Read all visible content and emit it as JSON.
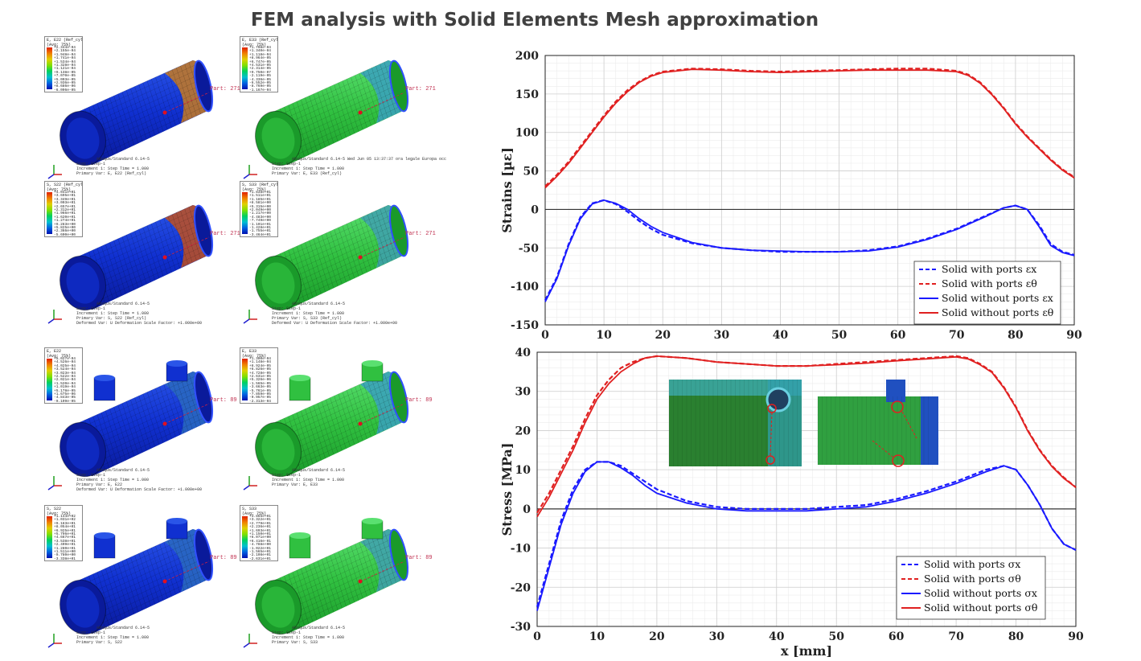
{
  "title": "FEM analysis with Solid Elements Mesh approximation",
  "colors": {
    "red": "#e02020",
    "blue": "#1a1aff",
    "grid": "#d8d8d8"
  },
  "fem_panels": [
    {
      "legend_title": "E, E22 (Ref_cyl)",
      "legend_avg": "(Avg: 75%)",
      "ticks": [
        "+2.344e-04",
        "+2.155e-04",
        "+1.948e-04",
        "+1.741e-04",
        "+1.534e-04",
        "+1.328e-04",
        "+1.121e-04",
        "+9.138e-05",
        "+7.070e-05",
        "+5.003e-05",
        "+2.936e-05",
        "+8.686e-06",
        "-6.096e-05"
      ],
      "part_label": "Part: 271",
      "footer": [
        "Step: Step-1",
        "Increment 1: Step Time = 1.000",
        "Primary Var: E, E22 (Ref_cyl)"
      ],
      "odb": "Abaqus/Standard 6.14-5",
      "body": "blue",
      "band": "#c87a20",
      "ports": false
    },
    {
      "legend_title": "E, E33 (Ref_cyl)",
      "legend_avg": "(Avg: 75%)",
      "ticks": [
        "+1.708e-04",
        "+1.340e-04",
        "+1.118e-04",
        "+8.964e-05",
        "+6.747e-05",
        "+4.531e-05",
        "+2.314e-05",
        "+9.750e-07",
        "-2.119e-05",
        "-4.336e-05",
        "-6.552e-05",
        "-8.769e-05",
        "-1.167e-04"
      ],
      "part_label": "Part: 271",
      "footer": [
        "Step: Step-1",
        "Increment 1: Step Time = 1.000",
        "Primary Var: E, E33 (Ref_cyl)"
      ],
      "odb": "Abaqus/Standard 6.14-5  Wed Jun 05 13:37:37 ora legale Europa occ",
      "body": "green",
      "band": "#3aa0c0",
      "ports": false
    },
    {
      "legend_title": "S, S22 (Ref_cyl)",
      "legend_avg": "(Avg: 75%)",
      "ticks": [
        "+4.041e+01",
        "+3.695e+01",
        "+3.349e+01",
        "+3.003e+01",
        "+2.657e+01",
        "+2.312e+01",
        "+1.966e+01",
        "+1.620e+01",
        "+1.274e+01",
        "+9.283e+00",
        "+5.825e+00",
        "+2.366e+00",
        "-5.600e+00"
      ],
      "part_label": "Part: 271",
      "footer": [
        "Step: Step-1",
        "Increment 1: Step Time = 1.000",
        "Primary Var: S, S22 (Ref_cyl)",
        "Deformed Var: U  Deformation Scale Factor: +1.000e+00"
      ],
      "odb": "Abaqus/Standard 6.14-5",
      "body": "blue",
      "band": "#c05020",
      "ports": false
    },
    {
      "legend_title": "S, S33 (Ref_cyl)",
      "legend_avg": "(Avg: 75%)",
      "ticks": [
        "+1.838e+01",
        "+1.511e+01",
        "+1.185e+01",
        "+8.581e+00",
        "+5.315e+00",
        "+2.049e+00",
        "-1.217e+00",
        "-4.483e+00",
        "-7.749e+00",
        "-1.101e+01",
        "-1.428e+01",
        "-1.755e+01",
        "-3.464e+01"
      ],
      "part_label": "Part: 271",
      "footer": [
        "Step: Step-1",
        "Increment 1: Step Time = 1.000",
        "Primary Var: S, S33 (Ref_cyl)",
        "Deformed Var: U  Deformation Scale Factor: +1.000e+00"
      ],
      "odb": "Abaqus/Standard 6.14-5",
      "body": "green",
      "band": "#40a0b0",
      "ports": false
    },
    {
      "legend_title": "E, E22",
      "legend_avg": "(Avg: 75%)",
      "ticks": [
        "+5.027e-04",
        "+4.526e-04",
        "+4.025e-04",
        "+3.524e-04",
        "+3.023e-04",
        "+2.522e-04",
        "+2.021e-04",
        "+1.520e-04",
        "+1.019e-04",
        "+5.178e-05",
        "+1.675e-06",
        "-4.843e-05",
        "-9.109e-05"
      ],
      "part_label": "Part: 89",
      "footer": [
        "Step: Step-1",
        "Increment 1: Step Time = 1.000",
        "Primary Var: E, E22",
        "Deformed Var: U  Deformation Scale Factor: +1.000e+00"
      ],
      "odb": "Abaqus/Standard 6.14-5",
      "body": "blue",
      "band": "#2a6ac0",
      "ports": true
    },
    {
      "legend_title": "E, E33",
      "legend_avg": "(Avg: 75%)",
      "ticks": [
        "+1.300e-04",
        "+1.148e-04",
        "+8.924e-05",
        "+6.826e-05",
        "+4.728e-05",
        "+2.631e-05",
        "+5.326e-06",
        "-1.565e-05",
        "-3.663e-05",
        "-5.761e-05",
        "-7.859e-05",
        "-9.957e-05",
        "-2.313e-04"
      ],
      "part_label": "Part: 89",
      "footer": [
        "Step: Step-1",
        "Increment 1: Step Time = 1.000",
        "Primary Var: E, E33"
      ],
      "odb": "Abaqus/Standard 6.14-5",
      "body": "green",
      "band": "#3aa0c0",
      "ports": true
    },
    {
      "legend_title": "S, S22",
      "legend_avg": "(Avg: 75%)",
      "ticks": [
        "+1.144e+02",
        "+1.031e+02",
        "+9.183e+01",
        "+8.054e+01",
        "+6.925e+01",
        "+5.796e+01",
        "+4.667e+01",
        "+3.538e+01",
        "+2.409e+01",
        "+1.280e+01",
        "+1.511e+00",
        "-9.780e+00",
        "-3.338e+01"
      ],
      "part_label": "Part: 89",
      "footer": [
        "Step: Step-1",
        "Increment 1: Step Time = 1.000",
        "Primary Var: S, S22"
      ],
      "odb": "Abaqus/Standard 6.14-5",
      "body": "blue",
      "band": "#2a6ac0",
      "ports": true
    },
    {
      "legend_title": "S, S33",
      "legend_avg": "(Avg: 75%)",
      "ticks": [
        "+3.865e+01",
        "+3.322e+01",
        "+2.779e+01",
        "+2.236e+01",
        "+1.693e+01",
        "+1.150e+01",
        "+6.071e+00",
        "+6.416e-01",
        "-4.788e+00",
        "-1.022e+01",
        "-1.565e+01",
        "-2.108e+01",
        "-2.631e+01"
      ],
      "part_label": "Part: 89",
      "footer": [
        "Step: Step-1",
        "Increment 1: Step Time = 1.000",
        "Primary Var: S, S33"
      ],
      "odb": "Abaqus/Standard 6.14-5",
      "body": "green",
      "band": "#40a0b0",
      "ports": true
    }
  ],
  "chart_data": [
    {
      "type": "line",
      "ylabel": "Strains",
      "ylabel_unit": "[µε]",
      "xlim": [
        0,
        90
      ],
      "ylim": [
        -150,
        200
      ],
      "yticks": [
        200,
        150,
        100,
        50,
        0,
        -50,
        -100,
        -150
      ],
      "xticks": [
        0,
        10,
        20,
        30,
        40,
        50,
        60,
        70,
        80,
        90
      ],
      "legend_position": "bottom-right",
      "series": [
        {
          "name": "Solid with ports εx",
          "color": "#1a1aff",
          "dash": true,
          "x": [
            0,
            2,
            4,
            6,
            8,
            10,
            12,
            14,
            16,
            18,
            20,
            25,
            30,
            35,
            40,
            45,
            50,
            55,
            60,
            65,
            70,
            75,
            78,
            80,
            82,
            84,
            86,
            88,
            90
          ],
          "y": [
            -118,
            -88,
            -45,
            -10,
            8,
            12,
            7,
            -3,
            -15,
            -25,
            -33,
            -44,
            -50,
            -53,
            -55,
            -55,
            -55,
            -53,
            -48,
            -38,
            -25,
            -8,
            2,
            5,
            0,
            -20,
            -45,
            -55,
            -59
          ]
        },
        {
          "name": "Solid with ports εθ",
          "color": "#e02020",
          "dash": true,
          "x": [
            0,
            2,
            4,
            6,
            8,
            10,
            12,
            14,
            16,
            18,
            20,
            25,
            30,
            35,
            40,
            45,
            50,
            55,
            60,
            65,
            70,
            72,
            74,
            76,
            78,
            80,
            82,
            84,
            86,
            88,
            90
          ],
          "y": [
            30,
            45,
            62,
            82,
            102,
            122,
            140,
            155,
            166,
            174,
            179,
            183,
            182,
            180,
            179,
            180,
            181,
            182,
            183,
            183,
            180,
            175,
            165,
            150,
            132,
            112,
            95,
            80,
            65,
            52,
            42
          ]
        },
        {
          "name": "Solid without ports εx",
          "color": "#1a1aff",
          "dash": false,
          "x": [
            0,
            2,
            4,
            6,
            8,
            10,
            12,
            14,
            16,
            18,
            20,
            25,
            30,
            35,
            40,
            45,
            50,
            55,
            60,
            65,
            70,
            75,
            78,
            80,
            82,
            84,
            86,
            88,
            90
          ],
          "y": [
            -120,
            -90,
            -47,
            -12,
            7,
            12,
            8,
            0,
            -12,
            -22,
            -30,
            -43,
            -50,
            -53,
            -54,
            -55,
            -55,
            -54,
            -49,
            -39,
            -26,
            -9,
            2,
            5,
            0,
            -22,
            -47,
            -56,
            -60
          ]
        },
        {
          "name": "Solid without ports εθ",
          "color": "#e02020",
          "dash": false,
          "x": [
            0,
            2,
            4,
            6,
            8,
            10,
            12,
            14,
            16,
            18,
            20,
            25,
            30,
            35,
            40,
            45,
            50,
            55,
            60,
            65,
            70,
            72,
            74,
            76,
            78,
            80,
            82,
            84,
            86,
            88,
            90
          ],
          "y": [
            28,
            43,
            60,
            80,
            100,
            120,
            138,
            153,
            165,
            173,
            178,
            182,
            181,
            179,
            178,
            179,
            180,
            181,
            181,
            181,
            179,
            174,
            164,
            149,
            131,
            111,
            94,
            79,
            64,
            51,
            41
          ]
        }
      ]
    },
    {
      "type": "line",
      "ylabel": "Stress [MPa]",
      "xlabel": "x [mm]",
      "xlim": [
        0,
        90
      ],
      "ylim": [
        -30,
        40
      ],
      "yticks": [
        40,
        30,
        20,
        10,
        0,
        -10,
        -20,
        -30
      ],
      "xticks": [
        0,
        10,
        20,
        30,
        40,
        50,
        60,
        70,
        80,
        90
      ],
      "legend_position": "bottom-right",
      "series": [
        {
          "name": "Solid with ports σx",
          "color": "#1a1aff",
          "dash": true,
          "x": [
            0,
            2,
            4,
            6,
            8,
            10,
            12,
            14,
            16,
            18,
            20,
            25,
            30,
            35,
            40,
            45,
            50,
            55,
            60,
            65,
            70,
            75,
            78,
            80,
            82,
            84,
            86,
            88,
            90
          ],
          "y": [
            -25,
            -14,
            -3,
            5,
            10,
            12,
            12,
            11,
            9,
            7,
            5,
            2,
            0.5,
            0,
            0,
            0,
            0.5,
            1,
            2.5,
            4.5,
            7,
            10,
            11,
            10,
            6,
            1,
            -5,
            -9,
            -10.5
          ]
        },
        {
          "name": "Solid with ports σθ",
          "color": "#e02020",
          "dash": true,
          "x": [
            0,
            2,
            4,
            6,
            8,
            10,
            12,
            14,
            16,
            18,
            20,
            25,
            30,
            35,
            40,
            45,
            50,
            55,
            60,
            65,
            70,
            72,
            74,
            76,
            78,
            80,
            82,
            84,
            86,
            88,
            90
          ],
          "y": [
            -1,
            4,
            10,
            16,
            23,
            29,
            33,
            36,
            37.5,
            38.5,
            39,
            38.5,
            37.5,
            37,
            36.5,
            36.5,
            37,
            37.5,
            38,
            38.5,
            39,
            38.5,
            37,
            35,
            31,
            26,
            20,
            15,
            11,
            8,
            5.5
          ]
        },
        {
          "name": "Solid without ports σx",
          "color": "#1a1aff",
          "dash": false,
          "x": [
            0,
            2,
            4,
            6,
            8,
            10,
            12,
            14,
            16,
            18,
            20,
            25,
            30,
            35,
            40,
            45,
            50,
            55,
            60,
            65,
            70,
            75,
            78,
            80,
            82,
            84,
            86,
            88,
            90
          ],
          "y": [
            -26,
            -15,
            -4,
            4,
            9.5,
            12,
            12,
            10.5,
            8.5,
            6,
            4,
            1.5,
            0,
            -0.5,
            -0.5,
            -0.5,
            0,
            0.5,
            2,
            4,
            6.5,
            9.5,
            11,
            10,
            6,
            1,
            -5,
            -9,
            -10.5
          ]
        },
        {
          "name": "Solid without ports σθ",
          "color": "#e02020",
          "dash": false,
          "x": [
            0,
            2,
            4,
            6,
            8,
            10,
            12,
            14,
            16,
            18,
            20,
            25,
            30,
            35,
            40,
            45,
            50,
            55,
            60,
            65,
            70,
            72,
            74,
            76,
            78,
            80,
            82,
            84,
            86,
            88,
            90
          ],
          "y": [
            -2,
            3,
            9,
            15,
            22,
            28,
            32,
            35,
            37,
            38.5,
            39,
            38.5,
            37.5,
            37,
            36.5,
            36.5,
            36.8,
            37.2,
            37.8,
            38.3,
            38.8,
            38.3,
            36.8,
            34.8,
            30.8,
            25.8,
            19.8,
            14.8,
            10.8,
            7.8,
            5.5
          ]
        }
      ]
    }
  ]
}
